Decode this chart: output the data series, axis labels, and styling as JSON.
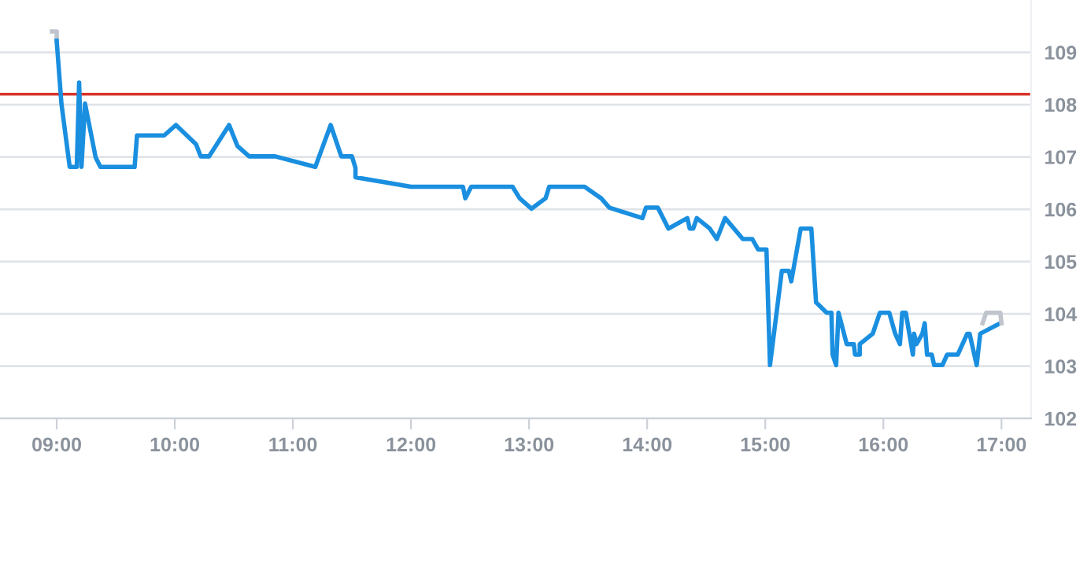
{
  "chart_data": {
    "type": "line",
    "xlim": [
      8.52,
      17.25
    ],
    "ylim": [
      102,
      110
    ],
    "xticks": [
      {
        "value": 9,
        "label": "09:00"
      },
      {
        "value": 10,
        "label": "10:00"
      },
      {
        "value": 11,
        "label": "11:00"
      },
      {
        "value": 12,
        "label": "12:00"
      },
      {
        "value": 13,
        "label": "13:00"
      },
      {
        "value": 14,
        "label": "14:00"
      },
      {
        "value": 15,
        "label": "15:00"
      },
      {
        "value": 16,
        "label": "16:00"
      },
      {
        "value": 17,
        "label": "17:00"
      }
    ],
    "yticks": [
      102,
      103,
      104,
      105,
      106,
      107,
      108,
      109
    ],
    "grid": "y",
    "marker": "none",
    "line_style": "solid",
    "ref_lines": [
      {
        "axis": "y",
        "value": 108.2,
        "color": "#d9342b"
      }
    ],
    "series": [
      {
        "color": "#c0c4cc",
        "x": [
          8.96,
          9.0,
          9.0
        ],
        "values": [
          109.4,
          109.4,
          109.22
        ]
      },
      {
        "color": "#1a8fe0",
        "x": [
          9.0,
          9.04,
          9.11,
          9.17,
          9.19,
          9.21,
          9.24,
          9.33,
          9.37,
          9.66,
          9.68,
          9.91,
          10.01,
          10.18,
          10.22,
          10.29,
          10.39,
          10.46,
          10.53,
          10.63,
          10.85,
          11.19,
          11.32,
          11.41,
          11.5,
          11.53,
          11.53,
          12.0,
          12.44,
          12.46,
          12.51,
          12.86,
          12.92,
          13.02,
          13.14,
          13.17,
          13.47,
          13.61,
          13.68,
          13.96,
          13.99,
          14.09,
          14.18,
          14.34,
          14.36,
          14.39,
          14.42,
          14.53,
          14.59,
          14.66,
          14.81,
          14.89,
          14.94,
          15.01,
          15.04,
          15.14,
          15.2,
          15.22,
          15.3,
          15.39,
          15.43,
          15.52,
          15.56,
          15.57,
          15.6,
          15.62,
          15.69,
          15.75,
          15.76,
          15.8,
          15.8,
          15.91,
          15.97,
          16.05,
          16.1,
          16.14,
          16.16,
          16.19,
          16.25,
          16.26,
          16.28,
          16.33,
          16.35,
          16.37,
          16.41,
          16.43,
          16.5,
          16.54,
          16.63,
          16.71,
          16.73,
          16.79,
          16.82,
          16.99
        ],
        "values": [
          109.22,
          108.02,
          106.81,
          106.81,
          108.42,
          106.81,
          108.02,
          106.99,
          106.81,
          106.81,
          107.41,
          107.41,
          107.61,
          107.24,
          107.01,
          107.01,
          107.36,
          107.61,
          107.21,
          107.01,
          107.01,
          106.81,
          107.61,
          107.01,
          107.01,
          106.79,
          106.61,
          106.43,
          106.43,
          106.21,
          106.43,
          106.43,
          106.21,
          106.01,
          106.21,
          106.43,
          106.43,
          106.21,
          106.03,
          105.83,
          106.03,
          106.03,
          105.63,
          105.83,
          105.63,
          105.63,
          105.83,
          105.63,
          105.43,
          105.83,
          105.43,
          105.43,
          105.23,
          105.23,
          103.02,
          104.82,
          104.82,
          104.62,
          105.63,
          105.63,
          104.22,
          104.02,
          104.02,
          103.22,
          103.02,
          104.02,
          103.42,
          103.42,
          103.22,
          103.22,
          103.42,
          103.62,
          104.02,
          104.02,
          103.62,
          103.42,
          104.02,
          104.02,
          103.22,
          103.62,
          103.42,
          103.62,
          103.82,
          103.22,
          103.22,
          103.02,
          103.02,
          103.22,
          103.22,
          103.62,
          103.62,
          103.02,
          103.62,
          103.82
        ]
      },
      {
        "color": "#c0c4cc",
        "x": [
          16.84,
          16.87,
          16.99,
          17.0
        ],
        "values": [
          103.82,
          104.02,
          104.02,
          103.82
        ]
      }
    ]
  }
}
